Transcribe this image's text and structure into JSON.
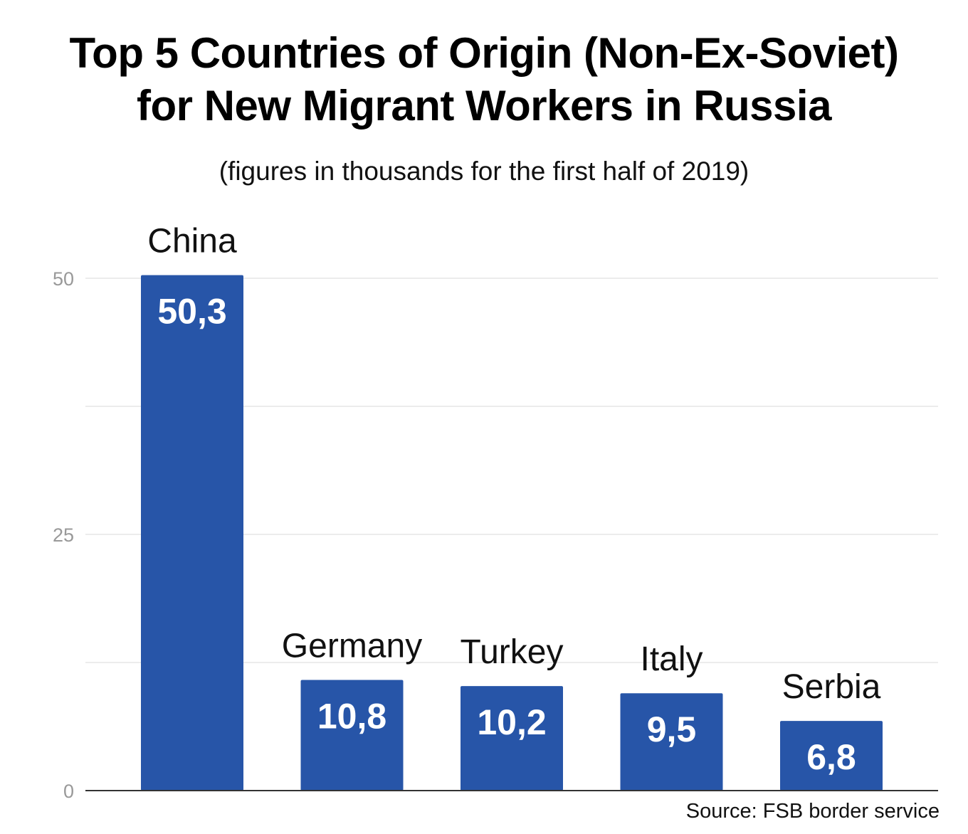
{
  "title_lines": [
    "Top 5 Countries of Origin (Non-Ex-Soviet)",
    "for New Migrant Workers in Russia"
  ],
  "subtitle": "(figures in thousands for the first half of 2019)",
  "source": "Source: FSB border service",
  "colors": {
    "bar": "#2755a8",
    "gridline": "#e6e6e6",
    "axis": "#333333",
    "tick_label": "#999999",
    "value_label": "#ffffff",
    "category_label": "#111111"
  },
  "chart_data": {
    "type": "bar",
    "title": "Top 5 Countries of Origin (Non-Ex-Soviet) for New Migrant Workers in Russia",
    "subtitle": "(figures in thousands for the first half of 2019)",
    "categories": [
      "China",
      "Germany",
      "Turkey",
      "Italy",
      "Serbia"
    ],
    "values": [
      50.3,
      10.8,
      10.2,
      9.5,
      6.8
    ],
    "value_labels": [
      "50,3",
      "10,8",
      "10,2",
      "9,5",
      "6,8"
    ],
    "xlabel": "",
    "ylabel": "",
    "ylim": [
      0,
      50.3
    ],
    "yticks": [
      0,
      25,
      50
    ],
    "ytick_labels": [
      "0",
      "25",
      "50"
    ],
    "grid": true,
    "legend": "none"
  }
}
